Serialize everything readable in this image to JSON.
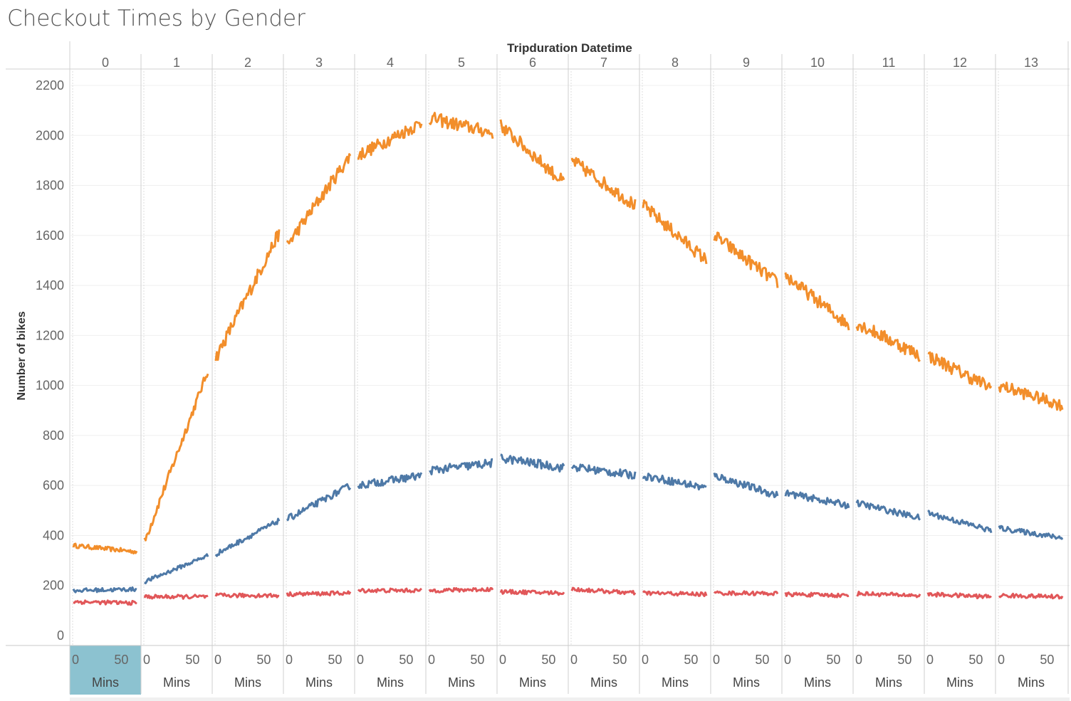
{
  "title": "Checkout Times by Gender",
  "colors": {
    "orange": "#f28e2b",
    "blue": "#4e79a7",
    "red": "#e15759",
    "highlight": "#8cc2d0"
  },
  "chart_data": {
    "type": "line",
    "column_header": "Tripduration Datetime",
    "ylabel": "Number of bikes",
    "ylim": [
      0,
      2200
    ],
    "y_ticks": [
      0,
      200,
      400,
      600,
      800,
      1000,
      1200,
      1400,
      1600,
      1800,
      2000,
      2200
    ],
    "panes": [
      0,
      1,
      2,
      3,
      4,
      5,
      6,
      7,
      8,
      9,
      10,
      11,
      12,
      13
    ],
    "x_unit_label": "Mins",
    "x_ticks": [
      0,
      50
    ],
    "x_range": [
      0,
      59
    ],
    "highlighted_pane": 0,
    "series": [
      {
        "color": "#f28e2b",
        "pane_ranges": [
          [
            360,
            335
          ],
          [
            375,
            1060
          ],
          [
            1110,
            1610
          ],
          [
            1560,
            1920
          ],
          [
            1920,
            2050
          ],
          [
            2070,
            2010
          ],
          [
            2040,
            1810
          ],
          [
            1900,
            1720
          ],
          [
            1720,
            1500
          ],
          [
            1600,
            1410
          ],
          [
            1440,
            1240
          ],
          [
            1250,
            1120
          ],
          [
            1120,
            990
          ],
          [
            1000,
            920
          ]
        ]
      },
      {
        "color": "#4e79a7",
        "pane_ranges": [
          [
            180,
            185
          ],
          [
            215,
            320
          ],
          [
            325,
            460
          ],
          [
            465,
            600
          ],
          [
            600,
            640
          ],
          [
            660,
            690
          ],
          [
            710,
            670
          ],
          [
            675,
            640
          ],
          [
            640,
            590
          ],
          [
            640,
            560
          ],
          [
            570,
            520
          ],
          [
            530,
            470
          ],
          [
            490,
            420
          ],
          [
            430,
            390
          ]
        ]
      },
      {
        "color": "#e15759",
        "pane_ranges": [
          [
            135,
            130
          ],
          [
            155,
            155
          ],
          [
            160,
            160
          ],
          [
            165,
            170
          ],
          [
            180,
            180
          ],
          [
            180,
            185
          ],
          [
            175,
            170
          ],
          [
            185,
            170
          ],
          [
            170,
            165
          ],
          [
            170,
            168
          ],
          [
            165,
            160
          ],
          [
            168,
            160
          ],
          [
            165,
            155
          ],
          [
            160,
            155
          ]
        ]
      }
    ]
  }
}
